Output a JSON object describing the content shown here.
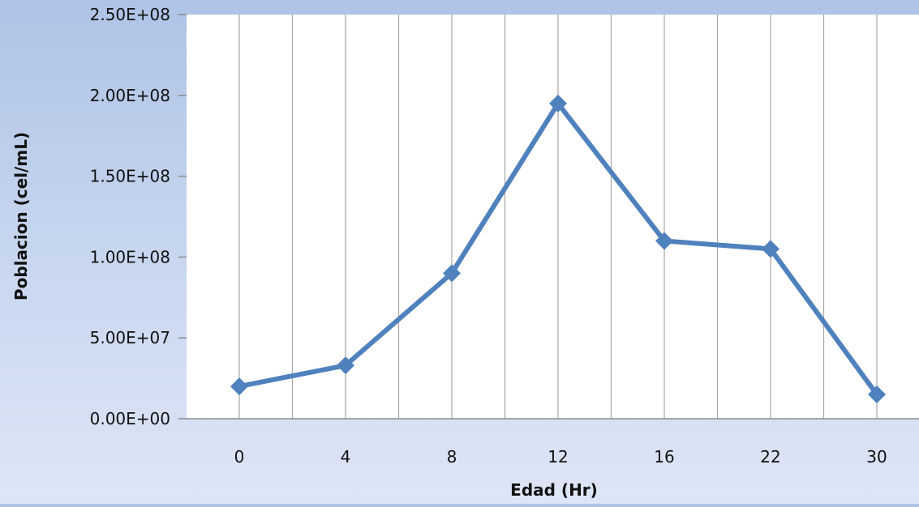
{
  "chart_data": {
    "type": "line",
    "categories": [
      "0",
      "4",
      "8",
      "12",
      "16",
      "22",
      "30"
    ],
    "series": [
      {
        "values": [
          20000000,
          33000000,
          90000000,
          195000000,
          110000000,
          105000000,
          15000000
        ]
      }
    ],
    "xlabel": "Edad (Hr)",
    "ylabel": "Poblacion (cel/mL)",
    "ylim": [
      0,
      250000000
    ],
    "yticks": [
      "0.00E+00",
      "5.00E+07",
      "1.00E+08",
      "1.50E+08",
      "2.00E+08",
      "2.50E+08"
    ],
    "grid": "vertical",
    "colors": {
      "series": "#4f81bd",
      "grid": "#a6a6a6",
      "plot_bg": "#ffffff"
    }
  }
}
